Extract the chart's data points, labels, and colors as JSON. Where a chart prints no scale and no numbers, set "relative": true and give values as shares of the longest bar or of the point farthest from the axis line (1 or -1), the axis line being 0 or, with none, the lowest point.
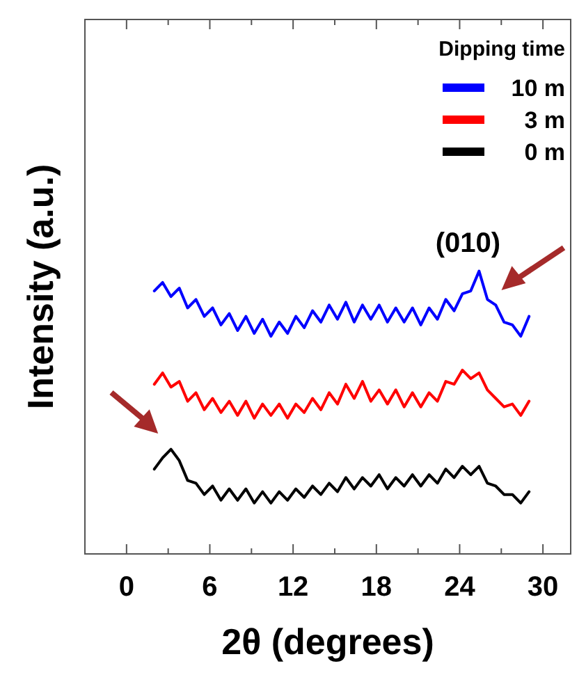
{
  "chart_data": {
    "type": "line",
    "relative": true,
    "xlabel": "2θ (degrees)",
    "ylabel": "Intensity (a.u.)",
    "legend_title": "Dipping time",
    "legend": "top right",
    "xlim": [
      -3,
      32
    ],
    "xticks": [
      0,
      {
        "value": 3,
        "label": null
      },
      6,
      {
        "value": 9,
        "label": null
      },
      12,
      {
        "value": 15,
        "label": null
      },
      18,
      {
        "value": 21,
        "label": null
      },
      24,
      {
        "value": 27,
        "label": null
      },
      30
    ],
    "annotations": [
      {
        "text": "(010)",
        "x": 25.4,
        "y": 1.0
      }
    ],
    "x": [
      2.0,
      2.6,
      3.2,
      3.8,
      4.4,
      5.0,
      5.6,
      6.2,
      6.8,
      7.4,
      8.0,
      8.6,
      9.2,
      9.8,
      10.4,
      11.0,
      11.6,
      12.2,
      12.8,
      13.4,
      14.0,
      14.6,
      15.2,
      15.8,
      16.4,
      17.0,
      17.6,
      18.2,
      18.8,
      19.4,
      20.0,
      20.6,
      21.2,
      21.8,
      22.4,
      23.0,
      23.6,
      24.2,
      24.8,
      25.4,
      26.0,
      26.6,
      27.2,
      27.8,
      28.4,
      29.0
    ],
    "series": [
      {
        "name": "10 m",
        "color": "#0000ff",
        "values": [
          0.93,
          0.96,
          0.91,
          0.94,
          0.87,
          0.9,
          0.84,
          0.87,
          0.81,
          0.85,
          0.79,
          0.84,
          0.78,
          0.83,
          0.77,
          0.82,
          0.78,
          0.84,
          0.8,
          0.86,
          0.82,
          0.88,
          0.83,
          0.89,
          0.82,
          0.88,
          0.83,
          0.88,
          0.82,
          0.87,
          0.82,
          0.87,
          0.81,
          0.87,
          0.83,
          0.9,
          0.86,
          0.92,
          0.93,
          1.0,
          0.9,
          0.88,
          0.82,
          0.81,
          0.77,
          0.84
        ]
      },
      {
        "name": "3 m",
        "color": "#ff0000",
        "values": [
          0.6,
          0.64,
          0.59,
          0.61,
          0.54,
          0.57,
          0.51,
          0.55,
          0.5,
          0.54,
          0.49,
          0.54,
          0.48,
          0.53,
          0.49,
          0.53,
          0.48,
          0.53,
          0.5,
          0.55,
          0.51,
          0.57,
          0.53,
          0.6,
          0.55,
          0.61,
          0.54,
          0.58,
          0.53,
          0.58,
          0.52,
          0.57,
          0.52,
          0.57,
          0.54,
          0.61,
          0.6,
          0.65,
          0.62,
          0.64,
          0.58,
          0.55,
          0.52,
          0.53,
          0.49,
          0.54
        ]
      },
      {
        "name": "0 m",
        "color": "#000000",
        "values": [
          0.3,
          0.34,
          0.37,
          0.33,
          0.26,
          0.25,
          0.21,
          0.24,
          0.19,
          0.23,
          0.19,
          0.23,
          0.18,
          0.22,
          0.18,
          0.22,
          0.19,
          0.23,
          0.2,
          0.24,
          0.21,
          0.25,
          0.22,
          0.27,
          0.23,
          0.27,
          0.24,
          0.28,
          0.23,
          0.27,
          0.24,
          0.28,
          0.24,
          0.28,
          0.25,
          0.3,
          0.27,
          0.31,
          0.28,
          0.31,
          0.25,
          0.24,
          0.21,
          0.21,
          0.18,
          0.22
        ]
      }
    ]
  }
}
